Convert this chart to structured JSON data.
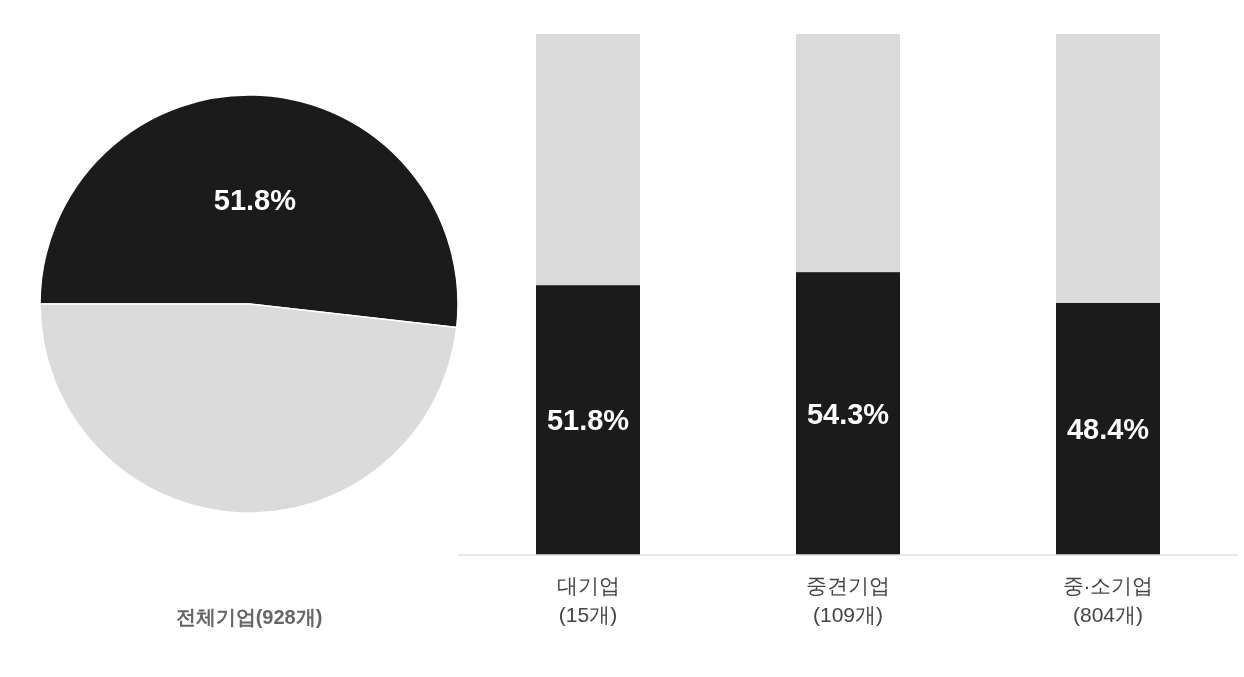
{
  "chart_data": [
    {
      "type": "pie",
      "title": "전체기업(928개)",
      "categories": [
        null,
        null
      ],
      "values": [
        51.8,
        48.2
      ],
      "colors": [
        "#1b1b1b",
        "#dbdbdb"
      ],
      "value_labels": [
        "51.8%",
        null
      ]
    },
    {
      "type": "bar",
      "stacked": true,
      "categories": [
        "대기업\n(15개)",
        "중견기업\n(109개)",
        "중·소기업\n(804개)"
      ],
      "series": [
        {
          "color": "#1b1b1b",
          "values": [
            51.8,
            54.3,
            48.4
          ],
          "value_labels": [
            "51.8%",
            "54.3%",
            "48.4%"
          ]
        },
        {
          "color": "#dbdbdb",
          "values": [
            48.2,
            45.7,
            51.6
          ]
        }
      ],
      "ylim": [
        0,
        100
      ],
      "tick_labels": "x"
    }
  ]
}
